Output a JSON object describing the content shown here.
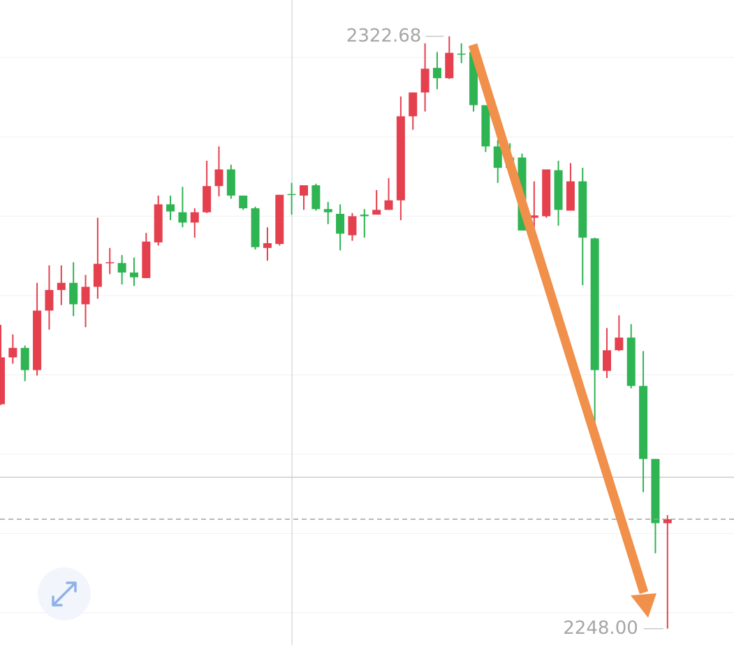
{
  "chart_data": {
    "type": "candlestick",
    "up_color": "#e4404e",
    "down_color": "#2eb452",
    "ylim": [
      2245.94,
      2327.26
    ],
    "yticks": [
      2250,
      2260,
      2270,
      2280,
      2290,
      2300,
      2310,
      2320
    ],
    "grid": true,
    "open": [
      2276.3,
      2282.2,
      2283.4,
      2280.6,
      2288.1,
      2290.7,
      2291.6,
      2288.9,
      2291.1,
      2294.1,
      2294.1,
      2292.9,
      2292.2,
      2296.7,
      2301.5,
      2300.5,
      2299.2,
      2300.5,
      2303.8,
      2305.9,
      2302.6,
      2301.0,
      2296.0,
      2296.5,
      2302.8,
      2302.6,
      2303.9,
      2300.9,
      2300.3,
      2297.6,
      2300.2,
      2300.2,
      2300.8,
      2302.0,
      2312.6,
      2315.6,
      2318.7,
      2317.4,
      2320.5,
      2320.7,
      2314.0,
      2308.8,
      2307.4,
      2307.4,
      2299.8,
      2300.0,
      2305.8,
      2300.7,
      2304.4,
      2297.2,
      2280.5,
      2283.1,
      2284.7,
      2278.6,
      2269.4,
      2261.3
    ],
    "high": [
      2286.3,
      2285.1,
      2283.7,
      2291.6,
      2293.8,
      2293.8,
      2294.2,
      2292.6,
      2299.8,
      2296.0,
      2295.1,
      2294.8,
      2297.9,
      2302.6,
      2302.6,
      2303.7,
      2301.0,
      2307.0,
      2308.8,
      2306.5,
      2302.6,
      2301.2,
      2298.6,
      2302.7,
      2304.2,
      2303.9,
      2304.1,
      2301.8,
      2301.5,
      2300.4,
      2300.9,
      2303.3,
      2304.8,
      2315.1,
      2315.6,
      2321.8,
      2320.7,
      2322.68,
      2321.8,
      2321.5,
      2314.0,
      2309.6,
      2309.2,
      2307.9,
      2304.4,
      2305.9,
      2307.0,
      2306.7,
      2306.1,
      2297.3,
      2285.9,
      2287.5,
      2286.4,
      2283.0,
      2269.4,
      2262.3
    ],
    "low": [
      2276.2,
      2281.4,
      2279.2,
      2279.9,
      2285.7,
      2288.8,
      2287.4,
      2286.0,
      2289.6,
      2292.7,
      2291.4,
      2291.2,
      2292.2,
      2296.3,
      2299.5,
      2298.6,
      2297.3,
      2300.4,
      2302.5,
      2302.2,
      2300.8,
      2295.8,
      2294.4,
      2296.3,
      2300.2,
      2300.8,
      2300.7,
      2299.0,
      2295.7,
      2296.9,
      2297.3,
      2300.2,
      2300.8,
      2299.5,
      2310.9,
      2313.2,
      2316.0,
      2317.3,
      2319.3,
      2313.2,
      2308.1,
      2304.2,
      2305.2,
      2298.2,
      2298.2,
      2299.8,
      2298.8,
      2300.7,
      2291.3,
      2273.3,
      2279.6,
      2283.0,
      2278.3,
      2265.2,
      2257.5,
      2248.0
    ],
    "close": [
      2282.2,
      2283.4,
      2280.6,
      2288.1,
      2290.7,
      2291.6,
      2288.9,
      2291.1,
      2294.0,
      2294.2,
      2292.9,
      2292.3,
      2296.8,
      2301.5,
      2300.6,
      2299.2,
      2300.5,
      2303.8,
      2305.9,
      2302.6,
      2301.0,
      2296.1,
      2296.6,
      2302.7,
      2302.7,
      2303.9,
      2300.9,
      2300.5,
      2297.8,
      2300.0,
      2300.0,
      2300.8,
      2302.0,
      2312.6,
      2315.6,
      2318.6,
      2317.4,
      2320.6,
      2320.4,
      2314.0,
      2308.8,
      2306.1,
      2306.1,
      2298.2,
      2300.1,
      2305.9,
      2300.8,
      2304.4,
      2297.3,
      2280.6,
      2283.1,
      2284.7,
      2278.6,
      2269.4,
      2261.3,
      2261.8
    ],
    "annotations": [
      "2322.68",
      "2248.00"
    ]
  }
}
